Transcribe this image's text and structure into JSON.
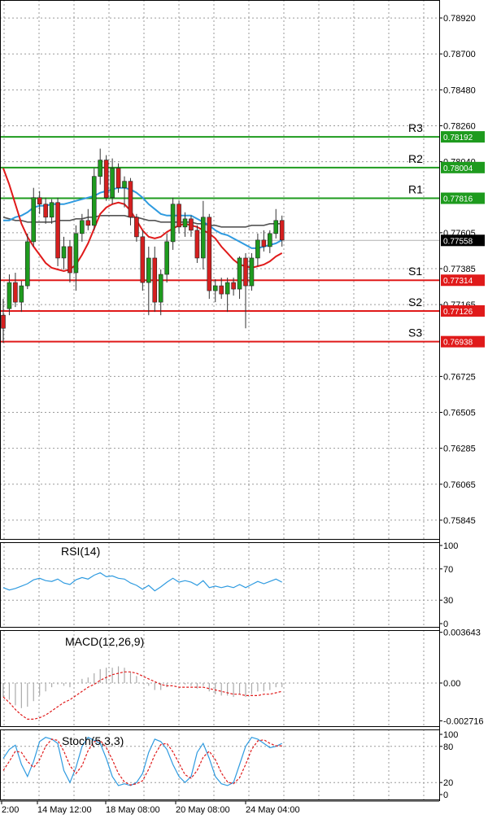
{
  "colors": {
    "bull": "#1e9b1e",
    "bear": "#d51f1f",
    "ma_blue": "#2f9be0",
    "ma_red": "#e01a1a",
    "ma_gray": "#555555",
    "resistance": "#1e9b1e",
    "support": "#e01a1a",
    "grid": "#9a9a9a",
    "current_price": "#000000",
    "indicator_line": "#2f9be0",
    "signal_line": "#e01a1a",
    "macd_bar": "#aaaaaa"
  },
  "chart_data": {
    "type": "candlestick",
    "price_axis": {
      "min": 0.7573,
      "max": 0.7903,
      "ticks": [
        "0.78920",
        "0.78700",
        "0.78480",
        "0.78260",
        "0.78040",
        "0.77605",
        "0.77385",
        "0.77165",
        "0.76725",
        "0.76505",
        "0.76285",
        "0.76065",
        "0.75845"
      ]
    },
    "current_price": {
      "value": 0.77558,
      "label": "0.77558"
    },
    "levels": [
      {
        "name": "R3",
        "value": 0.78192,
        "label": "0.78192",
        "kind": "resistance"
      },
      {
        "name": "R2",
        "value": 0.78004,
        "label": "0.78004",
        "kind": "resistance"
      },
      {
        "name": "R1",
        "value": 0.77816,
        "label": "0.77816",
        "kind": "resistance"
      },
      {
        "name": "S1",
        "value": 0.77314,
        "label": "0.77314",
        "kind": "support"
      },
      {
        "name": "S2",
        "value": 0.77126,
        "label": "0.77126",
        "kind": "support"
      },
      {
        "name": "S3",
        "value": 0.76938,
        "label": "0.76938",
        "kind": "support"
      }
    ],
    "time_labels": [
      "2:00",
      "14 May 12:00",
      "18 May 08:00",
      "20 May 08:00",
      "24 May 04:00"
    ],
    "candles": [
      {
        "o": 0.771,
        "h": 0.772,
        "l": 0.7693,
        "c": 0.7702
      },
      {
        "o": 0.7714,
        "h": 0.7735,
        "l": 0.771,
        "c": 0.773
      },
      {
        "o": 0.773,
        "h": 0.7736,
        "l": 0.7715,
        "c": 0.7718
      },
      {
        "o": 0.7718,
        "h": 0.7731,
        "l": 0.7712,
        "c": 0.7728
      },
      {
        "o": 0.7728,
        "h": 0.776,
        "l": 0.7726,
        "c": 0.7755
      },
      {
        "o": 0.7755,
        "h": 0.7788,
        "l": 0.7752,
        "c": 0.7782
      },
      {
        "o": 0.7782,
        "h": 0.7786,
        "l": 0.7772,
        "c": 0.7778
      },
      {
        "o": 0.7778,
        "h": 0.7782,
        "l": 0.7766,
        "c": 0.777
      },
      {
        "o": 0.777,
        "h": 0.7781,
        "l": 0.7766,
        "c": 0.7779
      },
      {
        "o": 0.7779,
        "h": 0.7782,
        "l": 0.774,
        "c": 0.7745
      },
      {
        "o": 0.7745,
        "h": 0.7758,
        "l": 0.7738,
        "c": 0.7752
      },
      {
        "o": 0.7752,
        "h": 0.7756,
        "l": 0.773,
        "c": 0.7736
      },
      {
        "o": 0.7736,
        "h": 0.7765,
        "l": 0.7725,
        "c": 0.776
      },
      {
        "o": 0.776,
        "h": 0.7772,
        "l": 0.7755,
        "c": 0.7768
      },
      {
        "o": 0.7768,
        "h": 0.7775,
        "l": 0.7762,
        "c": 0.7765
      },
      {
        "o": 0.7765,
        "h": 0.78,
        "l": 0.7762,
        "c": 0.7795
      },
      {
        "o": 0.7795,
        "h": 0.7812,
        "l": 0.779,
        "c": 0.7805
      },
      {
        "o": 0.7805,
        "h": 0.7808,
        "l": 0.778,
        "c": 0.7782
      },
      {
        "o": 0.7782,
        "h": 0.7806,
        "l": 0.7778,
        "c": 0.78
      },
      {
        "o": 0.78,
        "h": 0.7803,
        "l": 0.7785,
        "c": 0.7788
      },
      {
        "o": 0.7788,
        "h": 0.7795,
        "l": 0.7776,
        "c": 0.7792
      },
      {
        "o": 0.7792,
        "h": 0.7794,
        "l": 0.7765,
        "c": 0.777
      },
      {
        "o": 0.777,
        "h": 0.7772,
        "l": 0.7755,
        "c": 0.7758
      },
      {
        "o": 0.7758,
        "h": 0.7762,
        "l": 0.7725,
        "c": 0.773
      },
      {
        "o": 0.773,
        "h": 0.7752,
        "l": 0.771,
        "c": 0.7745
      },
      {
        "o": 0.7745,
        "h": 0.7752,
        "l": 0.7712,
        "c": 0.7718
      },
      {
        "o": 0.7718,
        "h": 0.7738,
        "l": 0.771,
        "c": 0.7735
      },
      {
        "o": 0.7735,
        "h": 0.776,
        "l": 0.773,
        "c": 0.7755
      },
      {
        "o": 0.7755,
        "h": 0.7782,
        "l": 0.775,
        "c": 0.7778
      },
      {
        "o": 0.7778,
        "h": 0.778,
        "l": 0.776,
        "c": 0.7764
      },
      {
        "o": 0.7764,
        "h": 0.7773,
        "l": 0.7758,
        "c": 0.7769
      },
      {
        "o": 0.7769,
        "h": 0.7771,
        "l": 0.7758,
        "c": 0.7762
      },
      {
        "o": 0.7762,
        "h": 0.7765,
        "l": 0.7742,
        "c": 0.7745
      },
      {
        "o": 0.7745,
        "h": 0.778,
        "l": 0.7738,
        "c": 0.777
      },
      {
        "o": 0.777,
        "h": 0.7772,
        "l": 0.772,
        "c": 0.7725
      },
      {
        "o": 0.7725,
        "h": 0.7732,
        "l": 0.7718,
        "c": 0.7728
      },
      {
        "o": 0.7728,
        "h": 0.7733,
        "l": 0.772,
        "c": 0.7723
      },
      {
        "o": 0.7723,
        "h": 0.7733,
        "l": 0.7712,
        "c": 0.773
      },
      {
        "o": 0.773,
        "h": 0.7733,
        "l": 0.7722,
        "c": 0.7726
      },
      {
        "o": 0.7726,
        "h": 0.7746,
        "l": 0.772,
        "c": 0.7745
      },
      {
        "o": 0.7745,
        "h": 0.7748,
        "l": 0.7702,
        "c": 0.7728
      },
      {
        "o": 0.7728,
        "h": 0.7748,
        "l": 0.7725,
        "c": 0.7745
      },
      {
        "o": 0.7745,
        "h": 0.776,
        "l": 0.774,
        "c": 0.7756
      },
      {
        "o": 0.7756,
        "h": 0.7762,
        "l": 0.7749,
        "c": 0.7752
      },
      {
        "o": 0.7752,
        "h": 0.7762,
        "l": 0.7748,
        "c": 0.776
      },
      {
        "o": 0.776,
        "h": 0.7775,
        "l": 0.7757,
        "c": 0.7768
      },
      {
        "o": 0.7768,
        "h": 0.7771,
        "l": 0.7752,
        "c": 0.7756
      }
    ],
    "ma_blue": [
      0.7768,
      0.7768,
      0.777,
      0.7771,
      0.7773,
      0.7776,
      0.7777,
      0.7777,
      0.7778,
      0.7778,
      0.7778,
      0.7779,
      0.778,
      0.7781,
      0.7782,
      0.7783,
      0.7785,
      0.7786,
      0.7787,
      0.7788,
      0.7788,
      0.7787,
      0.7785,
      0.7782,
      0.7778,
      0.7775,
      0.7772,
      0.7771,
      0.7771,
      0.7771,
      0.7771,
      0.7771,
      0.7769,
      0.7767,
      0.7765,
      0.7762,
      0.776,
      0.7759,
      0.7757,
      0.7755,
      0.7753,
      0.7751,
      0.7751,
      0.7752,
      0.7753,
      0.7754,
      0.7756
    ],
    "ma_red": [
      0.78,
      0.779,
      0.7778,
      0.7766,
      0.7758,
      0.7752,
      0.7747,
      0.7742,
      0.7739,
      0.7738,
      0.7737,
      0.7738,
      0.7741,
      0.7747,
      0.7754,
      0.7763,
      0.7772,
      0.7776,
      0.7778,
      0.7779,
      0.7778,
      0.7774,
      0.7768,
      0.7762,
      0.7758,
      0.7757,
      0.7758,
      0.7761,
      0.7763,
      0.7765,
      0.7766,
      0.7765,
      0.7764,
      0.7762,
      0.776,
      0.7757,
      0.7752,
      0.7748,
      0.7744,
      0.7741,
      0.774,
      0.7739,
      0.774,
      0.7741,
      0.7743,
      0.7746,
      0.7748
    ],
    "ma_gray": [
      0.777,
      0.7769,
      0.7768,
      0.7768,
      0.7767,
      0.7767,
      0.7767,
      0.7767,
      0.7767,
      0.7768,
      0.7768,
      0.7768,
      0.7769,
      0.7769,
      0.777,
      0.777,
      0.7771,
      0.7771,
      0.7771,
      0.7771,
      0.7771,
      0.777,
      0.777,
      0.7769,
      0.7768,
      0.7768,
      0.7767,
      0.7767,
      0.7767,
      0.7767,
      0.7767,
      0.7767,
      0.7766,
      0.7766,
      0.7765,
      0.7765,
      0.7764,
      0.7764,
      0.7764,
      0.7764,
      0.7764,
      0.7765,
      0.7765,
      0.7765,
      0.7766,
      0.7766,
      0.7766
    ],
    "rsi": {
      "title": "RSI(14)",
      "axis_labels": [
        "100",
        "70",
        "30",
        "0"
      ],
      "ylim": [
        0,
        100
      ],
      "values": [
        46,
        43,
        45,
        48,
        51,
        56,
        58,
        55,
        54,
        57,
        52,
        50,
        56,
        59,
        57,
        62,
        65,
        60,
        61,
        58,
        57,
        52,
        49,
        44,
        49,
        42,
        47,
        53,
        58,
        53,
        55,
        53,
        49,
        55,
        46,
        48,
        46,
        48,
        46,
        50,
        46,
        50,
        54,
        51,
        54,
        57,
        53
      ]
    },
    "macd": {
      "title": "MACD(12,26,9)",
      "axis_labels": [
        "0.003643",
        "0.00",
        "-0.002716"
      ],
      "ylim": [
        -0.0031,
        0.0038
      ],
      "histogram": [
        -0.001,
        -0.0012,
        -0.0016,
        -0.0018,
        -0.0017,
        -0.0013,
        -0.0009,
        -0.0006,
        -0.0003,
        -0.0001,
        -0.0002,
        -0.0003,
        0.0,
        0.0003,
        0.0004,
        0.0007,
        0.001,
        0.0011,
        0.0011,
        0.0012,
        0.0011,
        0.0008,
        0.0005,
        0.0,
        -0.0002,
        -0.0005,
        -0.0005,
        -0.0003,
        0.0,
        -0.0001,
        -0.0001,
        -0.0002,
        -0.0004,
        -0.0002,
        -0.0006,
        -0.0008,
        -0.0009,
        -0.0009,
        -0.001,
        -0.0008,
        -0.001,
        -0.0008,
        -0.0006,
        -0.0006,
        -0.0005,
        -0.0003,
        -0.0003
      ],
      "signal": [
        -0.001,
        -0.0014,
        -0.0019,
        -0.0023,
        -0.0026,
        -0.0026,
        -0.0025,
        -0.0023,
        -0.002,
        -0.0017,
        -0.0014,
        -0.0012,
        -0.0009,
        -0.0006,
        -0.0003,
        -0.0001,
        0.0002,
        0.0004,
        0.0006,
        0.0007,
        0.0008,
        0.0008,
        0.0007,
        0.0005,
        0.0003,
        0.0001,
        -0.0001,
        -0.0002,
        -0.0002,
        -0.0003,
        -0.0003,
        -0.0003,
        -0.0003,
        -0.0003,
        -0.0004,
        -0.0005,
        -0.0006,
        -0.0007,
        -0.0008,
        -0.0008,
        -0.0009,
        -0.0009,
        -0.0009,
        -0.0008,
        -0.0008,
        -0.0007,
        -0.0006
      ]
    },
    "stoch": {
      "title": "Stoch(5,3,3)",
      "axis_labels": [
        "100",
        "80",
        "20",
        "0"
      ],
      "ylim": [
        0,
        100
      ],
      "k": [
        60,
        75,
        82,
        50,
        30,
        55,
        88,
        95,
        92,
        85,
        40,
        20,
        45,
        80,
        95,
        90,
        85,
        60,
        30,
        15,
        18,
        15,
        20,
        35,
        70,
        92,
        88,
        75,
        50,
        30,
        20,
        30,
        70,
        85,
        60,
        30,
        18,
        15,
        20,
        50,
        80,
        95,
        92,
        85,
        78,
        80,
        85
      ],
      "d": [
        40,
        55,
        72,
        70,
        55,
        45,
        58,
        80,
        92,
        90,
        72,
        48,
        35,
        48,
        73,
        88,
        90,
        78,
        58,
        35,
        21,
        16,
        18,
        23,
        42,
        66,
        83,
        85,
        71,
        52,
        33,
        27,
        40,
        62,
        72,
        58,
        36,
        21,
        18,
        28,
        50,
        75,
        89,
        91,
        85,
        81,
        81
      ]
    }
  }
}
